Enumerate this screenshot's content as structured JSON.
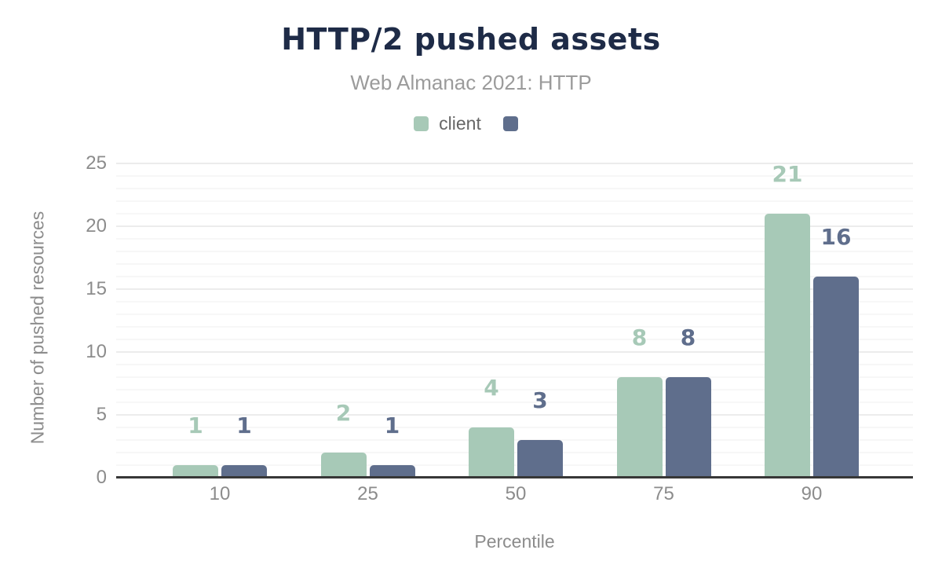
{
  "header": {
    "title": "HTTP/2 pushed assets",
    "subtitle": "Web Almanac 2021: HTTP"
  },
  "legend": [
    {
      "label": "client",
      "color": "#a7c9b7"
    },
    {
      "label": "",
      "color": "#5f6e8c"
    }
  ],
  "chart_data": {
    "type": "bar",
    "title": "HTTP/2 pushed assets",
    "subtitle": "Web Almanac 2021: HTTP",
    "categories": [
      "10",
      "25",
      "50",
      "75",
      "90"
    ],
    "series": [
      {
        "name": "client",
        "color": "#a7c9b7",
        "values": [
          1,
          2,
          4,
          8,
          21
        ]
      },
      {
        "name": "",
        "color": "#5f6e8c",
        "values": [
          1,
          1,
          3,
          8,
          16
        ]
      }
    ],
    "xlabel": "Percentile",
    "ylabel": "Number of pushed resources",
    "ylim": [
      0,
      25
    ],
    "yticks": [
      0,
      5,
      10,
      15,
      20,
      25
    ],
    "minor_grid_step": 1,
    "grid": true,
    "legend_position": "top",
    "data_labels": true
  },
  "palette": {
    "title_color": "#1e2b47",
    "subtitle_color": "#9b9b9b",
    "axis_text_color": "#8c8c8c",
    "legend_text_color": "#666666",
    "axis_line_color": "#373737",
    "major_grid_color": "#ececec",
    "minor_grid_color": "#f7f7f7"
  }
}
